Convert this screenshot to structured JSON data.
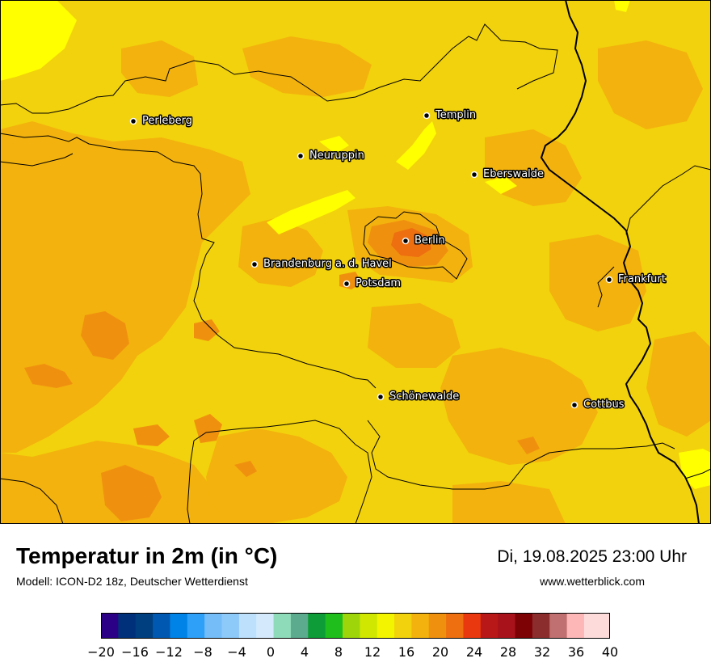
{
  "map": {
    "cities": [
      {
        "name": "Perleberg"
      },
      {
        "name": "Templin"
      },
      {
        "name": "Neuruppin"
      },
      {
        "name": "Eberswalde"
      },
      {
        "name": "Berlin"
      },
      {
        "name": "Brandenburg a. d. Havel"
      },
      {
        "name": "Potsdam"
      },
      {
        "name": "Frankfurt"
      },
      {
        "name": "Schönewalde"
      },
      {
        "name": "Cottbus"
      }
    ],
    "colors": {
      "base": "#f2d20c",
      "warm": "#f3b20d",
      "warmer": "#f0900f",
      "hot": "#ed6f10",
      "cool": "#ffff00"
    }
  },
  "footer": {
    "title": "Temperatur in 2m (in °C)",
    "subtitle": "Modell: ICON-D2 18z, Deutscher Wetterdienst",
    "datetime": "Di, 19.08.2025 23:00 Uhr",
    "website": "www.wetterblick.com"
  },
  "legend": {
    "min": -20,
    "max": 40,
    "step": 2,
    "tick_labels": [
      "−20",
      "−16",
      "−12",
      "−8",
      "−4",
      "0",
      "4",
      "8",
      "12",
      "16",
      "20",
      "24",
      "28",
      "32",
      "36",
      "40"
    ],
    "colors": [
      "#2b0087",
      "#00307a",
      "#003f7f",
      "#0058b0",
      "#0083e6",
      "#2fa0f7",
      "#74bdf8",
      "#8dc9f9",
      "#bde0fc",
      "#d4e9fc",
      "#8edbb9",
      "#5cab8e",
      "#0d9c37",
      "#1fbe1c",
      "#9ed40a",
      "#cfe701",
      "#f3f500",
      "#f2d20c",
      "#f3b20d",
      "#f0900f",
      "#ed6f10",
      "#e9370f",
      "#b81818",
      "#a8121b",
      "#7c0205",
      "#8c2d2d",
      "#c07070",
      "#fdb7b6",
      "#fedbdb"
    ]
  }
}
